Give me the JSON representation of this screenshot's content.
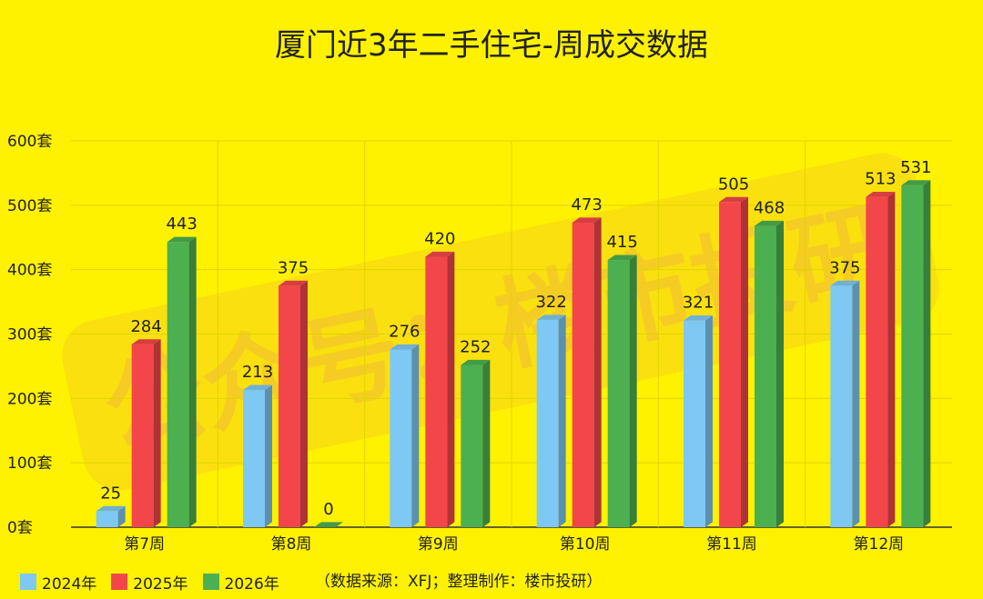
{
  "chart_data": {
    "type": "bar",
    "title": "厦门近3年二手住宅-周成交数据",
    "categories": [
      "第7周",
      "第8周",
      "第9周",
      "第10周",
      "第11周",
      "第12周"
    ],
    "series": [
      {
        "name": "2024年",
        "color": "#7EC8F4",
        "values": [
          25,
          213,
          276,
          322,
          321,
          375
        ]
      },
      {
        "name": "2025年",
        "color": "#F2464B",
        "values": [
          284,
          375,
          420,
          473,
          505,
          513
        ]
      },
      {
        "name": "2026年",
        "color": "#4CB050",
        "values": [
          443,
          0,
          252,
          415,
          468,
          531
        ]
      }
    ],
    "ylim": [
      0,
      600
    ],
    "yticks": [
      "0套",
      "100套",
      "200套",
      "300套",
      "400套",
      "500套",
      "600套"
    ],
    "grid": true,
    "legend_position": "bottom-left",
    "footnote": "（数据来源：XFJ；整理制作：楼市投研）"
  },
  "watermark": {
    "text": "公众号：楼市投研"
  }
}
